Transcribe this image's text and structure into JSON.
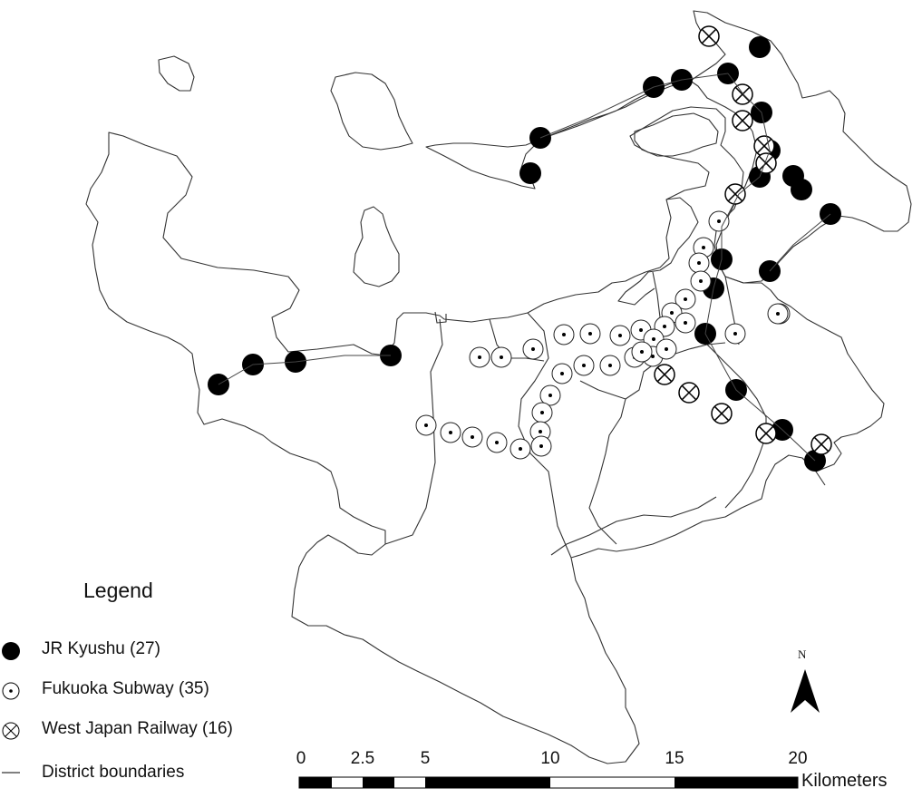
{
  "legend": {
    "title": "Legend",
    "items": [
      {
        "symbol": "jr-kyushu-station-icon",
        "label": "JR Kyushu (27)"
      },
      {
        "symbol": "subway-station-icon",
        "label": "Fukuoka Subway (35)"
      },
      {
        "symbol": "west-japan-station-icon",
        "label": "West Japan Railway (16)"
      },
      {
        "symbol": "district-boundary-icon",
        "label": "District boundaries"
      }
    ]
  },
  "north_arrow": {
    "label": "N"
  },
  "scale_bar": {
    "labels": [
      "0",
      "2.5",
      "5",
      "10",
      "15",
      "20"
    ],
    "unit": "Kilometers"
  },
  "colors": {
    "ink": "#000000",
    "background": "#ffffff"
  }
}
